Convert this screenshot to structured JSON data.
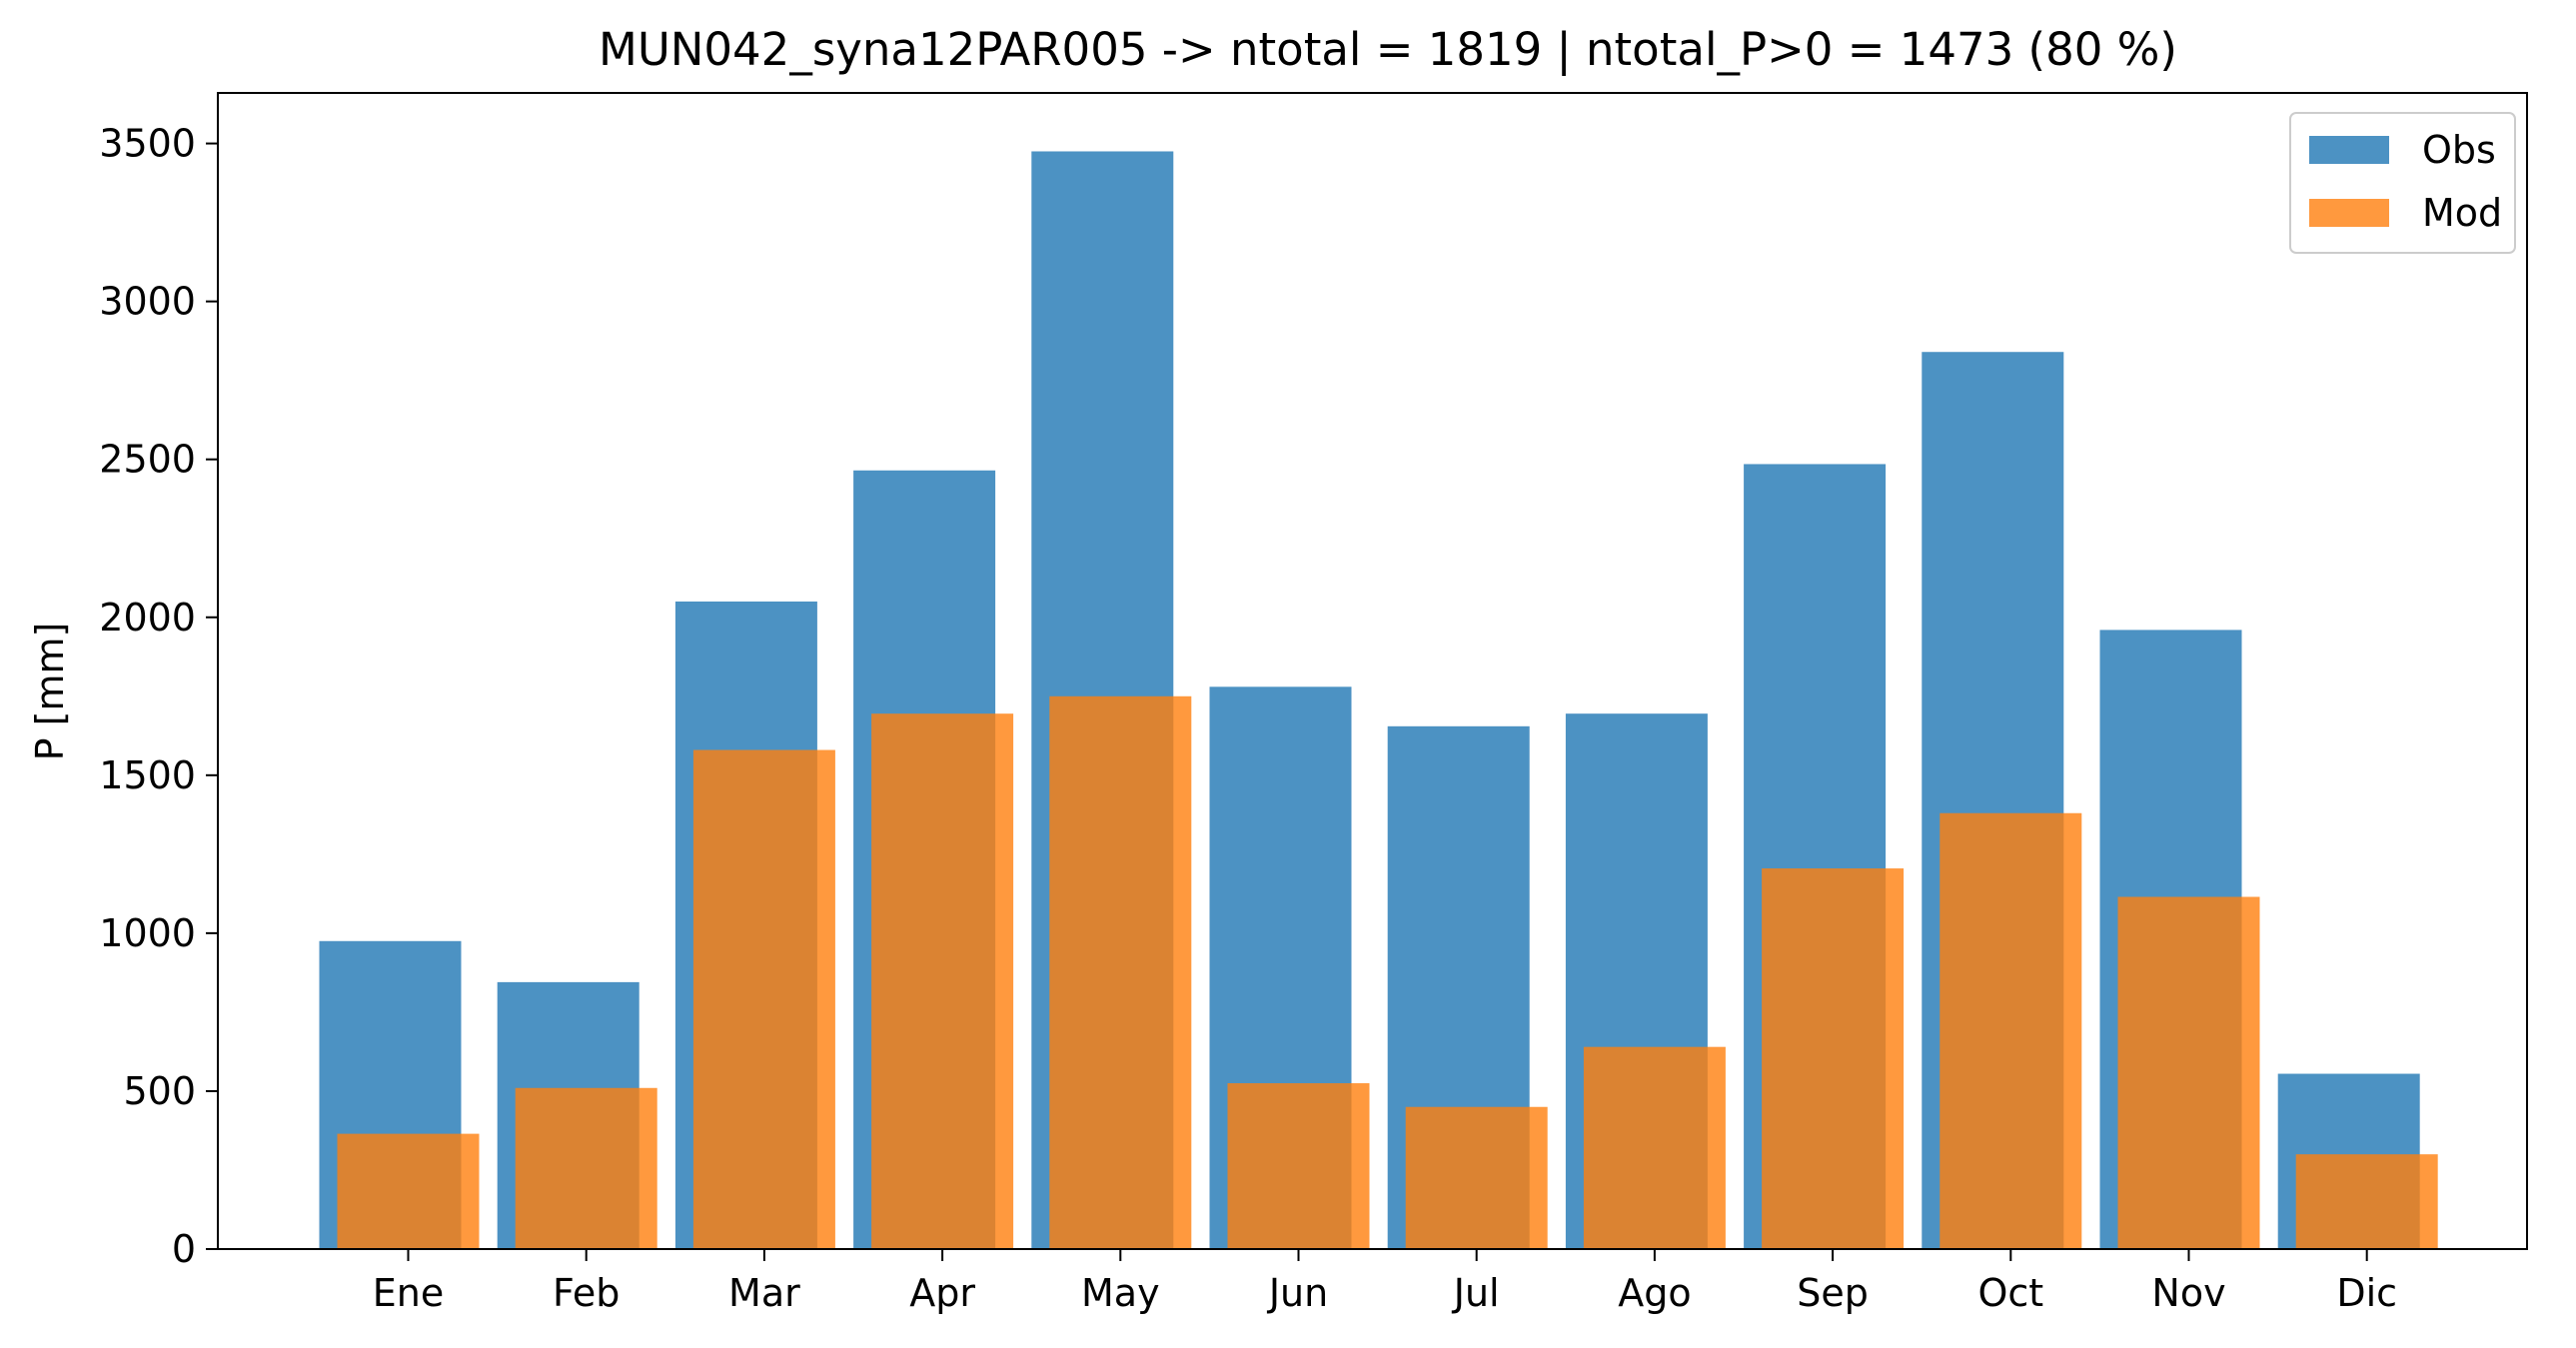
{
  "chart_data": {
    "type": "bar",
    "title": "MUN042_syna12PAR005 -> ntotal = 1819 | ntotal_P>0 = 1473 (80 %)",
    "xlabel": "",
    "ylabel": "P [mm]",
    "ylim": [
      0,
      3660
    ],
    "yticks": [
      0,
      500,
      1000,
      1500,
      2000,
      2500,
      3000,
      3500
    ],
    "categories": [
      "Ene",
      "Feb",
      "Mar",
      "Apr",
      "May",
      "Jun",
      "Jul",
      "Ago",
      "Sep",
      "Oct",
      "Nov",
      "Dic"
    ],
    "series": [
      {
        "name": "Obs",
        "color": "#1f77b4",
        "values": [
          975,
          845,
          2050,
          2465,
          3475,
          1780,
          1655,
          1695,
          2485,
          2840,
          1960,
          555
        ]
      },
      {
        "name": "Mod",
        "color": "#ff7f0e",
        "values": [
          365,
          510,
          1580,
          1695,
          1750,
          525,
          450,
          640,
          1205,
          1380,
          1115,
          300
        ]
      }
    ],
    "grid": false,
    "legend": "upper right"
  }
}
